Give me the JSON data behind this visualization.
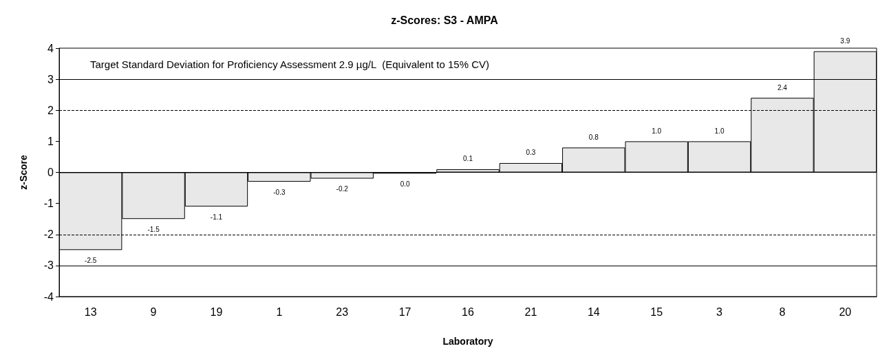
{
  "chart_data": {
    "type": "bar",
    "title": "z-Scores: S3 - AMPA",
    "xlabel": "Laboratory",
    "ylabel": "z-Score",
    "categories": [
      "13",
      "9",
      "19",
      "1",
      "23",
      "17",
      "16",
      "21",
      "14",
      "15",
      "3",
      "8",
      "20"
    ],
    "values": [
      -2.5,
      -1.5,
      -1.1,
      -0.3,
      -0.2,
      -0.04,
      0.1,
      0.3,
      0.8,
      1.0,
      1.0,
      2.4,
      3.9
    ],
    "value_labels": [
      "-2.5",
      "-1.5",
      "-1.1",
      "-0.3",
      "-0.2",
      "0.0",
      "0.1",
      "0.3",
      "0.8",
      "1.0",
      "1.0",
      "2.4",
      "3.9"
    ],
    "color": "#e8e8e8",
    "ylim": [
      -4,
      4
    ],
    "yticks": [
      -4,
      -3,
      -2,
      -1,
      0,
      1,
      2,
      3,
      4
    ],
    "grid": false,
    "ref_lines": [
      {
        "axis": "y",
        "value": 3,
        "color": "#000000",
        "line_style": "solid"
      },
      {
        "axis": "y",
        "value": 2,
        "color": "#000000",
        "line_style": "dashed"
      },
      {
        "axis": "y",
        "value": 0,
        "color": "#000000",
        "line_style": "solid"
      },
      {
        "axis": "y",
        "value": -2,
        "color": "#000000",
        "line_style": "dashed"
      },
      {
        "axis": "y",
        "value": -3,
        "color": "#000000",
        "line_style": "solid"
      }
    ],
    "annotations": [
      "Target Standard Deviation for Proficiency Assessment 2.9 µg/L  (Equivalent to 15% CV)"
    ]
  }
}
